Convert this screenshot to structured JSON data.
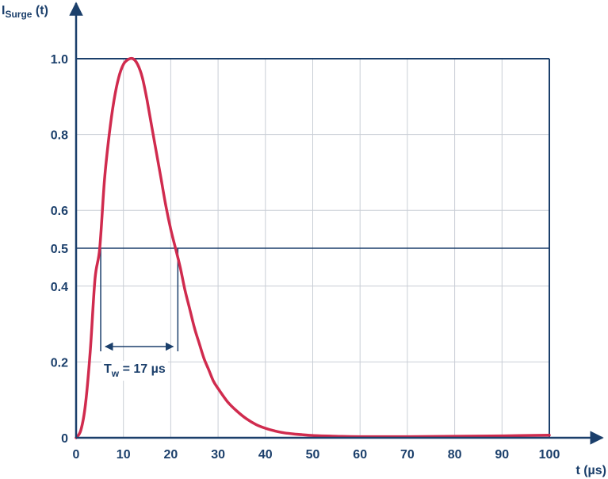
{
  "chart_data": {
    "type": "line",
    "ylabel": {
      "main": "I",
      "sub": "Surge",
      "rest": " (t)"
    },
    "xlabel": "t (µs)",
    "xlim": [
      0,
      100
    ],
    "ylim": [
      0,
      1.0
    ],
    "x_ticks": [
      0,
      10,
      20,
      30,
      40,
      50,
      60,
      70,
      80,
      90,
      100
    ],
    "x_tick_labels": [
      "0",
      "10",
      "20",
      "30",
      "40",
      "50",
      "60",
      "70",
      "80",
      "90",
      "100"
    ],
    "y_ticks": [
      0,
      0.2,
      0.4,
      0.5,
      0.6,
      0.8,
      1.0
    ],
    "y_tick_labels": [
      "0",
      "0.2",
      "0.4",
      "0.5",
      "0.6",
      "0.8",
      "1.0"
    ],
    "grid": true,
    "reference_line": {
      "y": 0.5
    },
    "series": [
      {
        "color": "#d02b4e",
        "x": [
          0,
          1,
          2,
          3,
          4,
          5,
          6,
          7,
          8,
          9,
          10,
          11,
          12,
          13,
          14,
          15,
          16,
          17,
          18,
          19,
          20,
          21,
          22,
          23,
          24,
          25,
          26,
          27,
          28,
          29,
          30,
          32,
          34,
          36,
          38,
          40,
          42,
          44,
          46,
          48,
          50,
          55,
          60,
          70,
          80,
          90,
          100
        ],
        "y": [
          0,
          0.02,
          0.09,
          0.23,
          0.42,
          0.5,
          0.68,
          0.8,
          0.89,
          0.95,
          0.985,
          0.998,
          1.0,
          0.985,
          0.95,
          0.89,
          0.82,
          0.75,
          0.68,
          0.61,
          0.55,
          0.5,
          0.45,
          0.39,
          0.34,
          0.29,
          0.25,
          0.21,
          0.18,
          0.15,
          0.13,
          0.095,
          0.07,
          0.05,
          0.035,
          0.025,
          0.018,
          0.013,
          0.01,
          0.008,
          0.006,
          0.004,
          0.003,
          0.003,
          0.004,
          0.005,
          0.007
        ]
      }
    ],
    "annotation": {
      "label_main": "T",
      "label_sub": "w",
      "label_rest": " = 17 µs",
      "x_start": 5.2,
      "x_end": 21.5
    }
  }
}
